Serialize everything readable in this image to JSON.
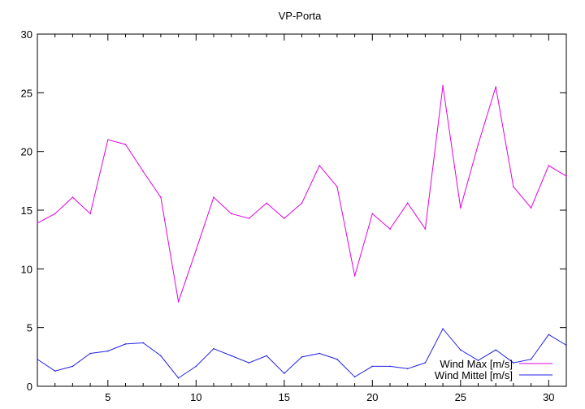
{
  "chart_data": {
    "type": "line",
    "title": "VP-Porta",
    "xlabel": "",
    "ylabel": "",
    "xlim": [
      1,
      31
    ],
    "ylim": [
      0,
      30
    ],
    "xticks": [
      5,
      10,
      15,
      20,
      25,
      30
    ],
    "yticks": [
      0,
      5,
      10,
      15,
      20,
      25,
      30
    ],
    "grid": false,
    "legend_position": "bottom-right",
    "x": [
      1,
      2,
      3,
      4,
      5,
      6,
      7,
      8,
      9,
      10,
      11,
      12,
      13,
      14,
      15,
      16,
      17,
      18,
      19,
      20,
      21,
      22,
      23,
      24,
      25,
      26,
      27,
      28,
      29,
      30,
      31
    ],
    "series": [
      {
        "name": "Wind Max [m/s]",
        "color": "#e000e0",
        "values": [
          13.9,
          14.7,
          16.1,
          14.7,
          21.0,
          20.6,
          18.3,
          16.1,
          7.2,
          11.6,
          16.1,
          14.7,
          14.3,
          15.6,
          14.3,
          15.6,
          18.8,
          17.0,
          9.4,
          14.7,
          13.4,
          15.6,
          13.4,
          25.6,
          15.2,
          20.6,
          25.5,
          17.0,
          15.2,
          18.8,
          17.9
        ]
      },
      {
        "name": "Wind Mittel [m/s]",
        "color": "#2020e0",
        "values": [
          2.3,
          1.3,
          1.7,
          2.8,
          3.0,
          3.6,
          3.7,
          2.6,
          0.7,
          1.7,
          3.2,
          2.6,
          2.0,
          2.6,
          1.1,
          2.5,
          2.8,
          2.3,
          0.8,
          1.7,
          1.7,
          1.5,
          2.0,
          4.9,
          3.1,
          2.2,
          3.1,
          2.0,
          2.3,
          4.4,
          3.5
        ]
      }
    ]
  }
}
